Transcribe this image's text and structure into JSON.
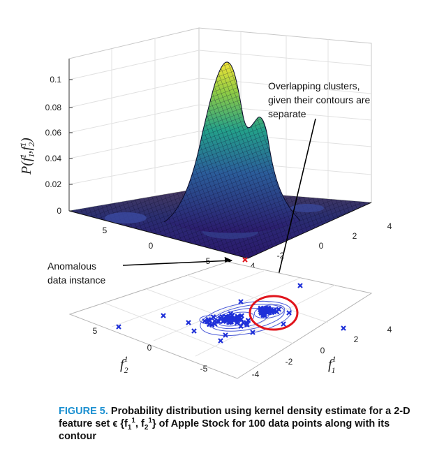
{
  "chart_data": [
    {
      "type": "surface",
      "z_axis_label": "P(f",
      "z_axis_sub": "1",
      "z_axis_sup": "1",
      "z_axis_sep": ",f",
      "z_axis_sub2": "2",
      "z_axis_sup2": "1",
      "z_axis_close": ")",
      "z_ticks": [
        "0.1",
        "0.08",
        "0.06",
        "0.04",
        "0.02",
        "0"
      ],
      "zlim": [
        0,
        0.115
      ],
      "f2_ticks": [
        "5",
        "0",
        "-5"
      ],
      "f1_ticks": [
        "-4",
        "-2",
        "0",
        "2",
        "4"
      ],
      "peaks": [
        {
          "f1": -0.5,
          "f2": 0.3,
          "height": 0.113
        },
        {
          "f1": 0.4,
          "f2": -0.4,
          "height": 0.075
        }
      ]
    },
    {
      "type": "scatter",
      "f2_ticks": [
        "5",
        "0",
        "-5"
      ],
      "f1_ticks": [
        "-4",
        "-2",
        "0",
        "2",
        "4"
      ],
      "f1_label": "f",
      "f1_sup": "1",
      "f1_sub": "1",
      "f2_label": "f",
      "f2_sup": "1",
      "f2_sub": "2",
      "n_points": 100
    }
  ],
  "annotations": {
    "overlap_line1": "Overlapping clusters,",
    "overlap_line2": "given their contours are",
    "overlap_line3": "separate",
    "anomaly_line1": "Anomalous",
    "anomaly_line2": "data instance"
  },
  "caption": {
    "label": "FIGURE 5.",
    "text_a": " Probability distribution using kernel density estimate for a 2-D feature set ϵ {f",
    "sub1": "1",
    "sup1": "1",
    "text_b": ", f",
    "sub2": "2",
    "sup2": "1",
    "text_c": "} of Apple Stock for 100 data points along with its contour"
  },
  "colors": {
    "surface_low": "#2b1a6b",
    "surface_mid": "#2a9d8f",
    "surface_high": "#f3e535",
    "marker": "#1f30d8",
    "highlight": "#e0141c",
    "caption_label": "#1a8fd0"
  }
}
